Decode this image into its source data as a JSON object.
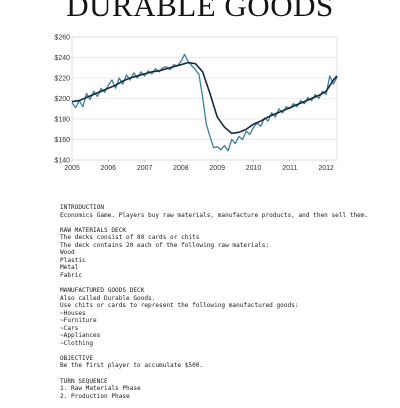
{
  "document": {
    "title": "DURABLE GOODS"
  },
  "chart_data": {
    "type": "line",
    "title": "",
    "xlabel": "",
    "ylabel": "",
    "xlim": [
      2005,
      2012.3
    ],
    "ylim": [
      140,
      260
    ],
    "x_ticks": [
      "2005",
      "2006",
      "2007",
      "2008",
      "2009",
      "2010",
      "2011",
      "2012"
    ],
    "y_ticks": [
      "$140",
      "$160",
      "$180",
      "$200",
      "$220",
      "$240",
      "$260"
    ],
    "grid": true,
    "legend": "none",
    "colors": [
      "#3a7fa0",
      "#14283d"
    ],
    "series": [
      {
        "x": [
          2005.0,
          2005.1,
          2005.2,
          2005.3,
          2005.4,
          2005.5,
          2005.6,
          2005.7,
          2005.8,
          2005.9,
          2006.0,
          2006.1,
          2006.2,
          2006.3,
          2006.4,
          2006.5,
          2006.6,
          2006.7,
          2006.8,
          2006.9,
          2007.0,
          2007.1,
          2007.2,
          2007.3,
          2007.4,
          2007.5,
          2007.6,
          2007.7,
          2007.8,
          2007.9,
          2008.0,
          2008.1,
          2008.2,
          2008.3,
          2008.4,
          2008.5,
          2008.6,
          2008.7,
          2008.8,
          2008.9,
          2009.0,
          2009.1,
          2009.2,
          2009.3,
          2009.4,
          2009.5,
          2009.6,
          2009.7,
          2009.8,
          2009.9,
          2010.0,
          2010.1,
          2010.2,
          2010.3,
          2010.4,
          2010.5,
          2010.6,
          2010.7,
          2010.8,
          2010.9,
          2011.0,
          2011.1,
          2011.2,
          2011.3,
          2011.4,
          2011.5,
          2011.6,
          2011.7,
          2011.8,
          2011.9,
          2012.0,
          2012.1,
          2012.2,
          2012.3
        ],
        "values": [
          196,
          191,
          198,
          192,
          205,
          199,
          207,
          202,
          210,
          206,
          213,
          218,
          210,
          220,
          214,
          223,
          218,
          225,
          220,
          226,
          222,
          227,
          224,
          229,
          226,
          230,
          231,
          228,
          233,
          232,
          236,
          243,
          236,
          232,
          228,
          223,
          201,
          175,
          163,
          152,
          153,
          150,
          154,
          149,
          160,
          156,
          163,
          160,
          168,
          165,
          172,
          176,
          173,
          181,
          178,
          186,
          182,
          190,
          186,
          192,
          190,
          195,
          192,
          198,
          195,
          201,
          198,
          204,
          200,
          207,
          204,
          222,
          214,
          221
        ]
      },
      {
        "x": [
          2005.0,
          2005.2,
          2005.4,
          2005.6,
          2005.8,
          2006.0,
          2006.2,
          2006.4,
          2006.6,
          2006.8,
          2007.0,
          2007.2,
          2007.4,
          2007.6,
          2007.8,
          2008.0,
          2008.2,
          2008.4,
          2008.6,
          2008.8,
          2009.0,
          2009.2,
          2009.4,
          2009.6,
          2009.8,
          2010.0,
          2010.2,
          2010.4,
          2010.6,
          2010.8,
          2011.0,
          2011.2,
          2011.4,
          2011.6,
          2011.8,
          2012.0,
          2012.2,
          2012.3
        ],
        "values": [
          197,
          198,
          201,
          204,
          207,
          210,
          213,
          217,
          220,
          222,
          224,
          226,
          227,
          229,
          231,
          233,
          235,
          234,
          226,
          205,
          182,
          172,
          166,
          167,
          170,
          175,
          178,
          182,
          185,
          188,
          191,
          194,
          197,
          200,
          203,
          207,
          218,
          222
        ]
      }
    ]
  },
  "sections": [
    {
      "heading": "INTRODUCTION",
      "lines": [
        "Economics Game. Players buy raw materials, manufacture products, and then sell them."
      ]
    },
    {
      "heading": "RAW MATERIALS DECK",
      "lines": [
        "The decks consist of 80 cards or chits",
        "The deck contains 20 each of the following raw materials:",
        "Wood",
        "Plastic",
        "Metal",
        "Fabric"
      ]
    },
    {
      "heading": "MANUFACTURED GOODS DECK",
      "lines": [
        "Also called Durable Goods.",
        "Use chits or cards to represent the following manufactured goods:",
        "~Houses",
        "~Furniture",
        "~Cars",
        "~Appliances",
        "~Clothing"
      ]
    },
    {
      "heading": "OBJECTIVE",
      "lines": [
        "Be the first player to accumulate $500."
      ]
    },
    {
      "heading": "TURN SEQUENCE",
      "lines": [
        "1. Raw Materials Phase",
        "2. Production Phase"
      ]
    }
  ]
}
